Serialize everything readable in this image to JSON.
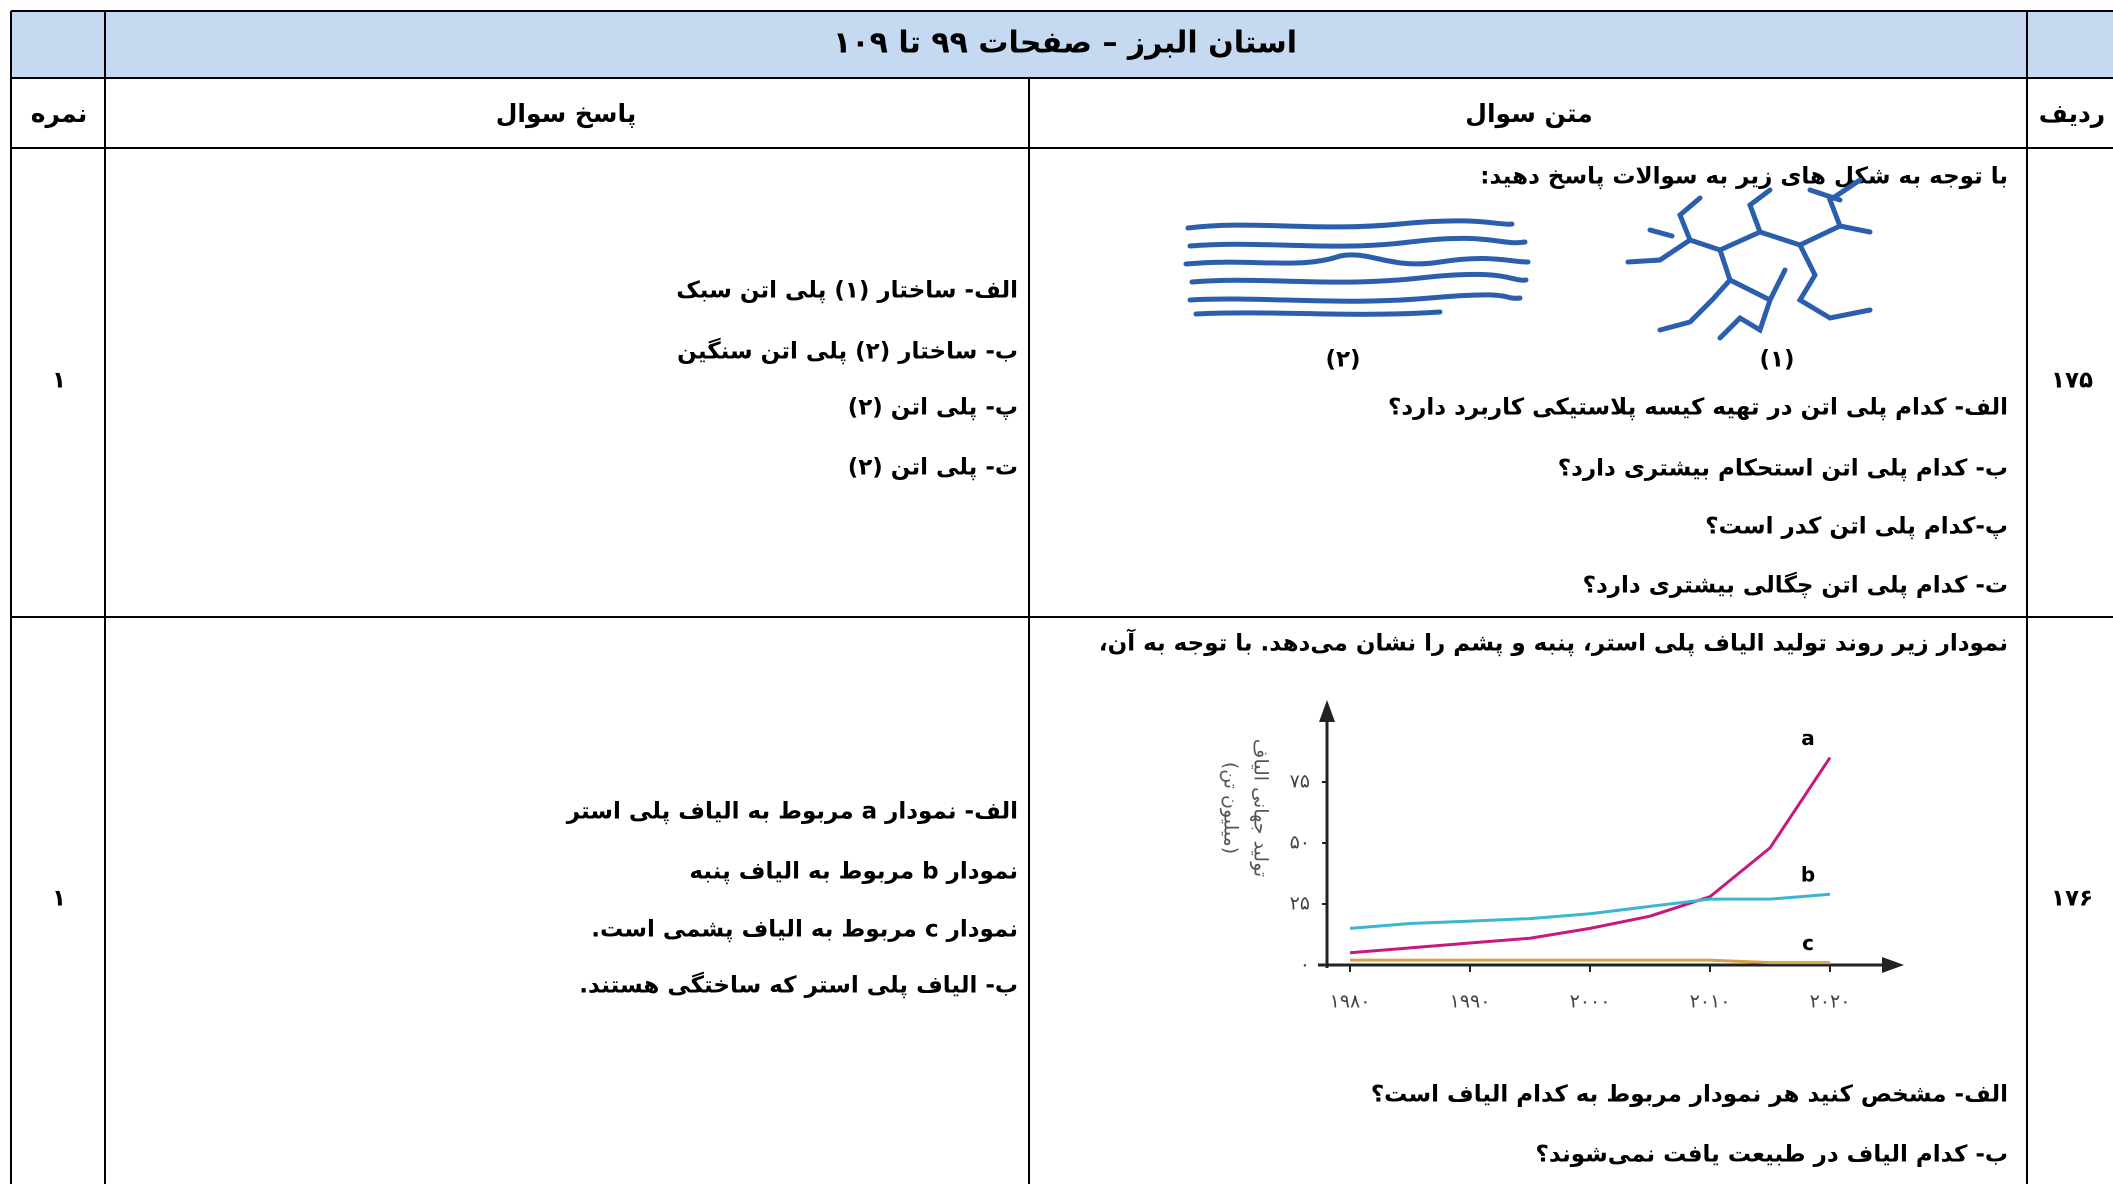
{
  "header": {
    "title": "استان البرز – صفحات ۹۹ تا ۱۰۹",
    "columns": [
      "نمره",
      "پاسخ سوال",
      "متن سوال",
      "ردیف"
    ]
  },
  "rows": [
    {
      "number": "۱۷۵",
      "score": "۱",
      "question": {
        "intro": "با توجه به شکل های زیر به سوالات پاسخ دهید:",
        "figure_labels": [
          "(۱)",
          "(۲)"
        ],
        "items": [
          "الف- کدام پلی اتن در تهیه کیسه پلاستیکی کاربرد دارد؟",
          "ب- کدام پلی اتن استحکام بیشتری دارد؟",
          "پ-کدام پلی اتن کدر است؟",
          "ت- کدام پلی اتن چگالی بیشتری دارد؟"
        ]
      },
      "answer": [
        "الف- ساختار (۱) پلی اتن سبک",
        "ب- ساختار (۲) پلی اتن سنگین",
        "پ- پلی اتن (۲)",
        "ت- پلی اتن (۲)"
      ]
    },
    {
      "number": "۱۷۶",
      "score": "۱",
      "question": {
        "intro": "نمودار زیر روند تولید الیاف پلی استر، پنبه و پشم را نشان می‌دهد. با توجه به آن،",
        "chart": {
          "type": "line",
          "y_label": "تولید جهانی الیاف",
          "y_unit": "(میلیون تن)",
          "x": [
            1980,
            1985,
            1990,
            1995,
            2000,
            2005,
            2010,
            2015,
            2020
          ],
          "xlim": [
            1980,
            2020
          ],
          "xticks": [
            {
              "value": 1980,
              "label": "۱۹۸۰"
            },
            {
              "value": 1990,
              "label": "۱۹۹۰"
            },
            {
              "value": 2000,
              "label": "۲۰۰۰"
            },
            {
              "value": 2010,
              "label": "۲۰۱۰"
            },
            {
              "value": 2020,
              "label": "۲۰۲۰"
            }
          ],
          "ylim": [
            0,
            100
          ],
          "yticks": [
            {
              "value": 0,
              "label": "۰"
            },
            {
              "value": 25,
              "label": "۲۵"
            },
            {
              "value": 50,
              "label": "۵۰"
            },
            {
              "value": 75,
              "label": "۷۵"
            }
          ],
          "series": [
            {
              "name": "a",
              "color": "#c8187e",
              "values": [
                5,
                7,
                9,
                11,
                15,
                20,
                28,
                48,
                85
              ]
            },
            {
              "name": "b",
              "color": "#3bb6d0",
              "values": [
                15,
                17,
                18,
                19,
                21,
                24,
                27,
                27,
                29
              ]
            },
            {
              "name": "c",
              "color": "#d9a046",
              "values": [
                2,
                2,
                2,
                2,
                2,
                2,
                2,
                1,
                1
              ]
            }
          ]
        },
        "items": [
          "الف- مشخص کنید هر نمودار مربوط به کدام الیاف است؟",
          "ب- کدام الیاف در طبیعت یافت نمی‌شوند؟"
        ]
      },
      "answer": [
        "الف- نمودار a مربوط به الیاف پلی استر",
        "نمودار b مربوط به الیاف پنبه",
        "نمودار c مربوط به الیاف پشمی است.",
        "ب- الیاف پلی استر که ساختگی هستند."
      ]
    }
  ]
}
